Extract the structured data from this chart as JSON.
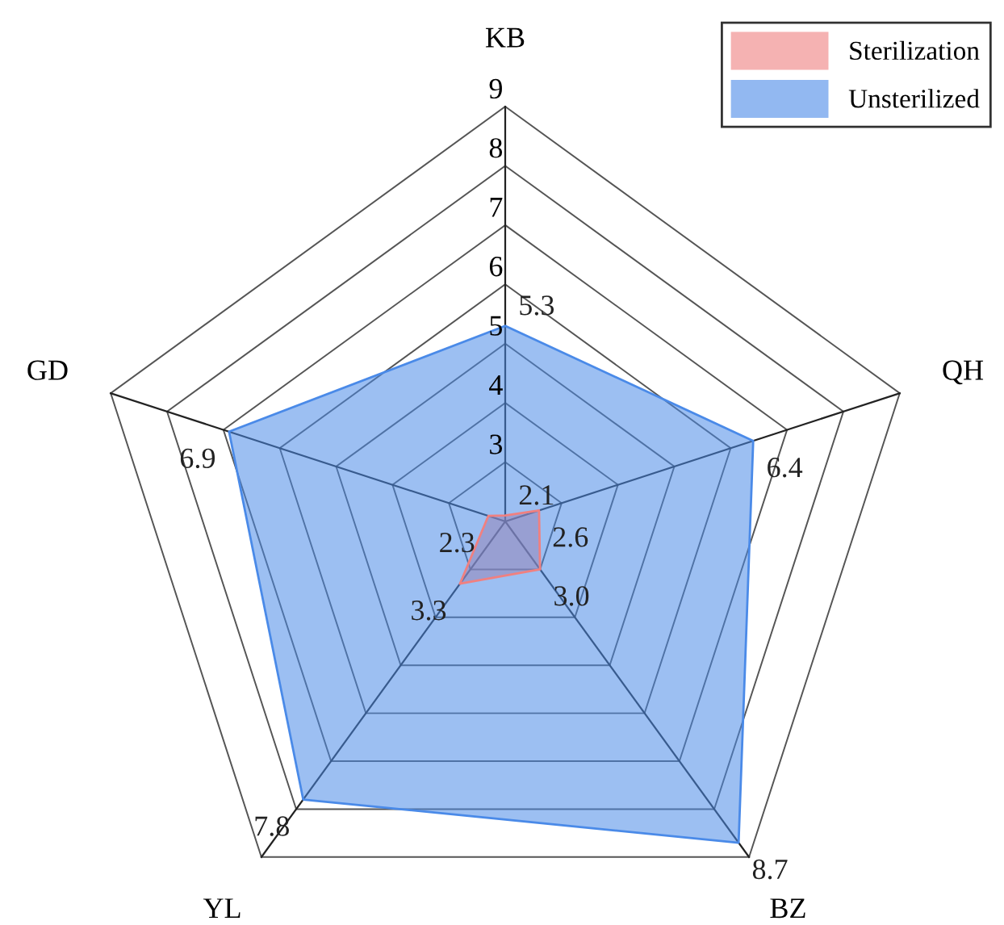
{
  "chart_data": {
    "type": "radar",
    "categories": [
      "KB",
      "QH",
      "BZ",
      "YL",
      "GD"
    ],
    "series": [
      {
        "name": "Sterilization",
        "color": "#f08080",
        "values": [
          2.1,
          2.6,
          3.0,
          3.3,
          2.3
        ],
        "value_labels": [
          "2.1",
          "2.6",
          "3.0",
          "3.3",
          "2.3"
        ]
      },
      {
        "name": "Unsterilized",
        "color": "#4a8ae8",
        "values": [
          5.3,
          6.4,
          8.7,
          7.8,
          6.9
        ],
        "value_labels": [
          "5.3",
          "6.4",
          "8.7",
          "7.8",
          "6.9"
        ]
      }
    ],
    "ylim": [
      2,
      9
    ],
    "yticks": [
      3,
      4,
      5,
      6,
      7,
      8,
      9
    ],
    "grid": true,
    "legend": "top right"
  }
}
